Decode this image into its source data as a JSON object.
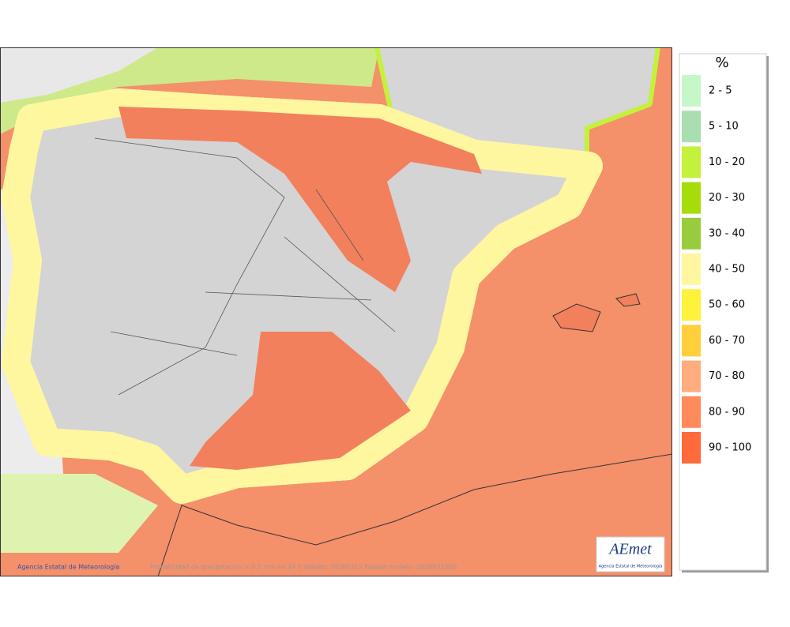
{
  "legend": {
    "unit": "%",
    "items": [
      {
        "label": "2 - 5",
        "color": "#c6f7c9"
      },
      {
        "label": "5 - 10",
        "color": "#a9deb0"
      },
      {
        "label": "10 - 20",
        "color": "#c4f13c"
      },
      {
        "label": "20 - 30",
        "color": "#a6dc0a"
      },
      {
        "label": "30 - 40",
        "color": "#98cc3c"
      },
      {
        "label": "40 - 50",
        "color": "#fff7a0"
      },
      {
        "label": "50 - 60",
        "color": "#fff23c"
      },
      {
        "label": "60 - 70",
        "color": "#ffd03c"
      },
      {
        "label": "70 - 80",
        "color": "#ffac7e"
      },
      {
        "label": "80 - 90",
        "color": "#ff8a5a"
      },
      {
        "label": "90 - 100",
        "color": "#ff6a3a"
      }
    ]
  },
  "footer": {
    "credit": "Agencia Estatal de Meteorología",
    "caption": "Probabilidad de precipitación > 0.5 mm en 24 h Validez: 20260315 Pasada modelo: 2026031500"
  },
  "logo": {
    "name": "AEmet",
    "subtitle": "Agencia Estatal de Meteorología"
  }
}
